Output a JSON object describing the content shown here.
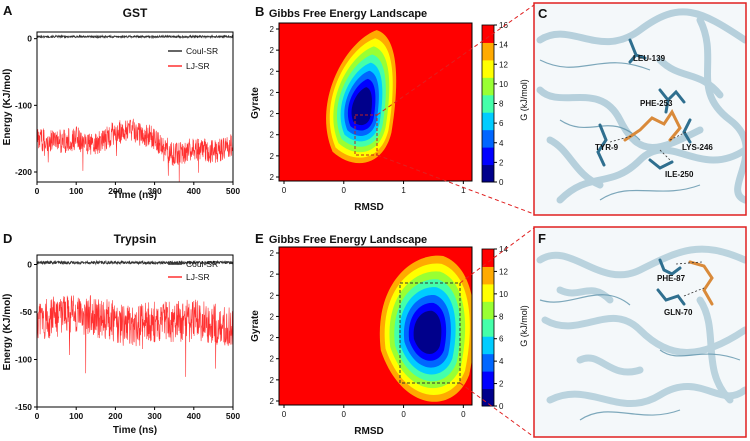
{
  "panels": {
    "A": {
      "letter": "A",
      "title": "GST",
      "ylabel": "Energy (KJ/mol)",
      "xlabel": "Time (ns)",
      "legend": [
        "Coul-SR",
        "LJ-SR"
      ]
    },
    "B": {
      "letter": "B",
      "title": "Gibbs Free Energy Landscape",
      "ylabel": "Gyrate",
      "xlabel": "RMSD",
      "colorbar_label": "G (kJ/mol)"
    },
    "C": {
      "letter": "C",
      "residues": [
        "LEU-139",
        "PHE-253",
        "TYR-9",
        "LYS-246",
        "ILE-250"
      ]
    },
    "D": {
      "letter": "D",
      "title": "Trypsin",
      "ylabel": "Energy (KJ/mol)",
      "xlabel": "Time (ns)",
      "legend": [
        "Coul-SR",
        "LJ-SR"
      ]
    },
    "E": {
      "letter": "E",
      "title": "Gibbs Free Energy Landscape",
      "ylabel": "Gyrate",
      "xlabel": "RMSD",
      "colorbar_label": "G (kJ/mol)"
    },
    "F": {
      "letter": "F",
      "residues": [
        "PHE-87",
        "GLN-70"
      ]
    }
  },
  "colors": {
    "coul": "#333333",
    "lj": "#ff3030",
    "scale": [
      "#00008b",
      "#0000ff",
      "#0066ff",
      "#00ccff",
      "#44ffaa",
      "#99ff33",
      "#ffff00",
      "#ffaa00",
      "#ff0000"
    ],
    "zoom_box": "#e02020",
    "protein": "#2f6f8f",
    "ligand": "#d98a3a"
  },
  "chart_data": [
    {
      "id": "A",
      "type": "line",
      "title": "GST",
      "xlabel": "Time (ns)",
      "ylabel": "Energy (KJ/mol)",
      "xlim": [
        0,
        500
      ],
      "ylim": [
        -215,
        10
      ],
      "xticks": [
        0,
        100,
        200,
        300,
        400,
        500
      ],
      "yticks": [
        0,
        -100,
        -200
      ],
      "series": [
        {
          "name": "Coul-SR",
          "x": [
            0,
            50,
            100,
            150,
            200,
            250,
            300,
            350,
            400,
            450,
            500
          ],
          "values": [
            3,
            3,
            3,
            3,
            3,
            3,
            3,
            3,
            3,
            3,
            3
          ],
          "noise": 1.5
        },
        {
          "name": "LJ-SR",
          "x": [
            0,
            50,
            100,
            150,
            200,
            250,
            300,
            350,
            400,
            450,
            500
          ],
          "values": [
            -150,
            -155,
            -150,
            -160,
            -140,
            -138,
            -150,
            -175,
            -165,
            -170,
            -160
          ],
          "noise": 18
        }
      ]
    },
    {
      "id": "D",
      "type": "line",
      "title": "Trypsin",
      "xlabel": "Time (ns)",
      "ylabel": "Energy (KJ/mol)",
      "xlim": [
        0,
        500
      ],
      "ylim": [
        -150,
        10
      ],
      "xticks": [
        0,
        100,
        200,
        300,
        400,
        500
      ],
      "yticks": [
        0,
        -50,
        -100,
        -150
      ],
      "series": [
        {
          "name": "Coul-SR",
          "x": [
            0,
            50,
            100,
            150,
            200,
            250,
            300,
            350,
            400,
            450,
            500
          ],
          "values": [
            2,
            2,
            2,
            2,
            2,
            2,
            2,
            2,
            2,
            2,
            2
          ],
          "noise": 1.5
        },
        {
          "name": "LJ-SR",
          "x": [
            0,
            50,
            100,
            150,
            200,
            250,
            300,
            350,
            400,
            450,
            500
          ],
          "values": [
            -60,
            -55,
            -50,
            -55,
            -60,
            -65,
            -60,
            -60,
            -58,
            -62,
            -65
          ],
          "noise": 22
        }
      ]
    },
    {
      "id": "B",
      "type": "heatmap",
      "title": "Gibbs Free Energy Landscape",
      "xlabel": "RMSD",
      "ylabel": "Gyrate",
      "xticks": [
        "0",
        "0",
        "1",
        "1"
      ],
      "yticks": [
        "2",
        "2",
        "2",
        "2",
        "2",
        "2",
        "2",
        "2"
      ],
      "colorbar": {
        "label": "G (kJ/mol)",
        "min": 0,
        "max": 16,
        "ticks": [
          0,
          2,
          4,
          6,
          8,
          10,
          12,
          14,
          16
        ]
      },
      "basin": {
        "center_rmsd": 0.42,
        "center_gyrate_frac": 0.38,
        "min_energy": 0
      }
    },
    {
      "id": "E",
      "type": "heatmap",
      "title": "Gibbs Free Energy Landscape",
      "xlabel": "RMSD",
      "ylabel": "Gyrate",
      "xticks": [
        "0",
        "0",
        "0",
        "0"
      ],
      "yticks": [
        "2",
        "2",
        "2",
        "2",
        "2",
        "2",
        "2",
        "2"
      ],
      "colorbar": {
        "label": "G (kJ/mol)",
        "min": 0,
        "max": 14,
        "ticks": [
          0,
          2,
          4,
          6,
          8,
          10,
          12,
          14
        ]
      },
      "basin": {
        "center_rmsd": 0.75,
        "center_gyrate_frac": 0.5,
        "min_energy": 0
      }
    }
  ]
}
